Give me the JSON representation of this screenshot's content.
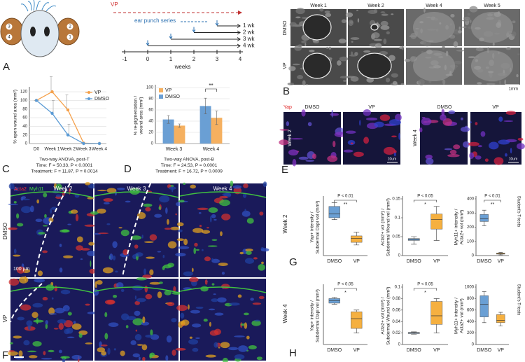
{
  "figure": {
    "panel_labels": [
      "A",
      "B",
      "C",
      "D",
      "E",
      "F",
      "G",
      "H"
    ],
    "panel_a": {
      "ear_numbers": [
        "3",
        "4",
        "2",
        "1"
      ],
      "vp": "VP",
      "series_label": "ear punch series",
      "rows": [
        "1 wk",
        "2 wk",
        "3 wk",
        "4 wk"
      ],
      "ticks": [
        -1,
        0,
        1,
        2,
        3,
        4
      ],
      "axis_label": "weeks"
    },
    "panel_b": {
      "columns": [
        "Week 1",
        "Week 2",
        "Week 4",
        "Week 5"
      ],
      "rows": [
        "DMSO",
        "VP"
      ],
      "scale_bar": "1mm"
    },
    "panel_e": {
      "stain": "Yap",
      "columns": [
        "DMSO",
        "VP",
        "DMSO",
        "VP"
      ],
      "rows": [
        "Week 2",
        "Week 4"
      ],
      "scale_bars": [
        "10um",
        "10um"
      ]
    },
    "panel_f": {
      "stains": [
        "Acta2",
        "Myh11"
      ],
      "columns": [
        "Week 2",
        "Week 3",
        "Week 4"
      ],
      "rows": [
        "DMSO",
        "VP"
      ],
      "scale_bar": "100 µm"
    },
    "panel_g": {
      "row_label": "Week 2"
    },
    "panel_h": {
      "row_label": "Week 4"
    }
  },
  "chart_data": [
    {
      "type": "line",
      "y_label": [
        "% open wound area (mm²)"
      ],
      "categories": [
        "D0",
        "Week 1",
        "Week 2",
        "Week 3",
        "Week 4"
      ],
      "series": [
        {
          "name": "VP",
          "color": "#f5a04a",
          "values": [
            100,
            120,
            78,
            1,
            0
          ],
          "errors": [
            0,
            35,
            35,
            0,
            0
          ]
        },
        {
          "name": "DMSO",
          "color": "#5b9bd5",
          "values": [
            100,
            70,
            20,
            0,
            0
          ],
          "errors": [
            0,
            30,
            25,
            0,
            0
          ]
        }
      ],
      "ylim": [
        0,
        125
      ],
      "yticks": [
        0,
        20,
        40,
        60,
        80,
        100,
        120
      ],
      "grid": true,
      "caption": [
        "Two-way ANOVA, post-T",
        "Time: F = 50.33, P < 0.0001",
        "Treatment: F = 11.87, P = 0.0014"
      ]
    },
    {
      "type": "bar",
      "y_label": [
        "% re-pigmentation /",
        "wound area (mm²)"
      ],
      "categories": [
        "Week 3",
        "Week 4"
      ],
      "series": [
        {
          "name": "VP",
          "color": "#f5b060",
          "values": [
            32,
            46
          ],
          "errors": [
            3,
            12
          ]
        },
        {
          "name": "DMSO",
          "color": "#6a9fd4",
          "values": [
            43,
            67
          ],
          "errors": [
            7,
            14
          ]
        }
      ],
      "ylim": [
        0,
        100
      ],
      "yticks": [
        0,
        20,
        40,
        60,
        80,
        100
      ],
      "grid": true,
      "sig": "**",
      "caption": [
        "Two-way ANOVA, post-B",
        "Time: F = 24.53, P = 0.0001",
        "Treatment: F = 16.72, P = 0.0009"
      ]
    },
    {
      "type": "box",
      "y_label": [
        "Yap+ intensity /",
        "Subdermal Dapi vol (mm³)"
      ],
      "categories": [
        "DMSO",
        "VP"
      ],
      "colors": [
        "#6a9fd4",
        "#f5b040"
      ],
      "boxes": [
        {
          "min": 95,
          "q1": 100,
          "median": 110,
          "q3": 130,
          "max": 140
        },
        {
          "min": 28,
          "q1": 35,
          "median": 45,
          "q3": 52,
          "max": 62
        }
      ],
      "ylim": [
        0,
        150
      ],
      "p_label": "P < 0.01",
      "sig": "**"
    },
    {
      "type": "box",
      "y_label": [
        "Acta2+ vol (mm³) /",
        "Subdermal Wound vol (mm³)"
      ],
      "categories": [
        "DMSO",
        "VP"
      ],
      "colors": [
        "#6a9fd4",
        "#f5b040"
      ],
      "boxes": [
        {
          "min": 0.03,
          "q1": 0.04,
          "median": 0.043,
          "q3": 0.045,
          "max": 0.05
        },
        {
          "min": 0.04,
          "q1": 0.07,
          "median": 0.095,
          "q3": 0.11,
          "max": 0.13
        }
      ],
      "ylim": [
        0,
        0.15
      ],
      "yticks": [
        0,
        0.05,
        0.1,
        0.15
      ],
      "p_label": "P < 0.05",
      "sig": "*"
    },
    {
      "type": "box",
      "y_label": [
        "Myh11+ intensity /",
        "Acta2+ vol (mm³)"
      ],
      "categories": [
        "DMSO",
        "VP"
      ],
      "colors": [
        "#6a9fd4",
        "#f5b040"
      ],
      "boxes": [
        {
          "min": 210,
          "q1": 240,
          "median": 260,
          "q3": 290,
          "max": 320
        },
        {
          "min": 5,
          "q1": 10,
          "median": 14,
          "q3": 18,
          "max": 22
        }
      ],
      "ylim": [
        0,
        400
      ],
      "yticks": [
        0,
        100,
        200,
        300,
        400
      ],
      "p_label": "P < 0.01",
      "sig": "**",
      "side_note": "Student's T-tests"
    },
    {
      "type": "box",
      "y_label": [
        "Yap+ intensity /",
        "Subdermal Dapi vol (mm³)"
      ],
      "categories": [
        "DMSO",
        "VP"
      ],
      "colors": [
        "#6a9fd4",
        "#f5b040"
      ],
      "boxes": [
        {
          "min": 70,
          "q1": 72,
          "median": 76,
          "q3": 80,
          "max": 82
        },
        {
          "min": 20,
          "q1": 28,
          "median": 45,
          "q3": 57,
          "max": 60
        }
      ],
      "ylim": [
        0,
        100
      ],
      "p_label": "P < 0.05",
      "sig": "*"
    },
    {
      "type": "box",
      "y_label": [
        "Acta2+ vol (mm³) /",
        "Subdermal Wound vol (mm³)"
      ],
      "categories": [
        "DMSO",
        "VP"
      ],
      "colors": [
        "#6a9fd4",
        "#f5b040"
      ],
      "boxes": [
        {
          "min": 0.018,
          "q1": 0.019,
          "median": 0.02,
          "q3": 0.021,
          "max": 0.022
        },
        {
          "min": 0.02,
          "q1": 0.035,
          "median": 0.05,
          "q3": 0.075,
          "max": 0.08
        }
      ],
      "ylim": [
        0,
        0.1
      ],
      "yticks": [
        0,
        0.02,
        0.04,
        0.06,
        0.08,
        0.1
      ],
      "p_label": "P < 0.05",
      "sig": "*"
    },
    {
      "type": "box",
      "y_label": [
        "Myh11+ intensity /",
        "Acta2+ vol (mm³)"
      ],
      "categories": [
        "DMSO",
        "VP"
      ],
      "colors": [
        "#6a9fd4",
        "#f5b040"
      ],
      "boxes": [
        {
          "min": 380,
          "q1": 480,
          "median": 700,
          "q3": 850,
          "max": 920
        },
        {
          "min": 320,
          "q1": 380,
          "median": 420,
          "q3": 520,
          "max": 560
        }
      ],
      "ylim": [
        0,
        1000
      ],
      "yticks": [
        0,
        200,
        400,
        600,
        800,
        1000
      ],
      "side_note": "Student's T-tests"
    }
  ]
}
